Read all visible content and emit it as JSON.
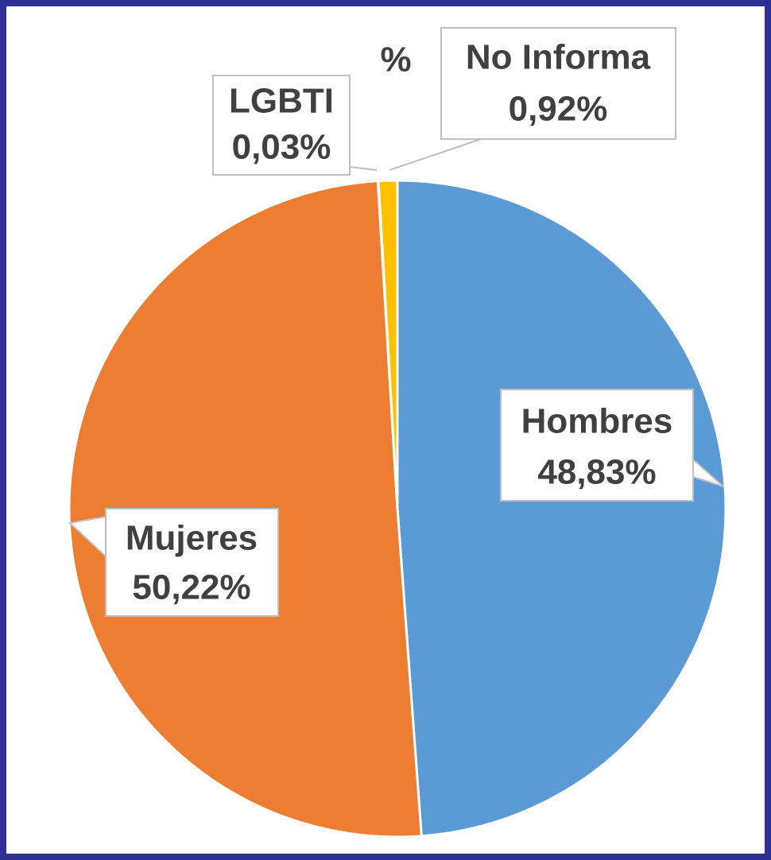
{
  "chart_data": {
    "type": "pie",
    "title": "%",
    "categories": [
      "Hombres",
      "Mujeres",
      "LGBTI",
      "No Informa"
    ],
    "values": [
      48.83,
      50.22,
      0.03,
      0.92
    ],
    "value_labels": [
      "48,83%",
      "50,22%",
      "0,03%",
      "0,92%"
    ],
    "colors": [
      "#5b9bd5",
      "#ed7d31",
      "#a5a5a5",
      "#ffc000"
    ]
  }
}
